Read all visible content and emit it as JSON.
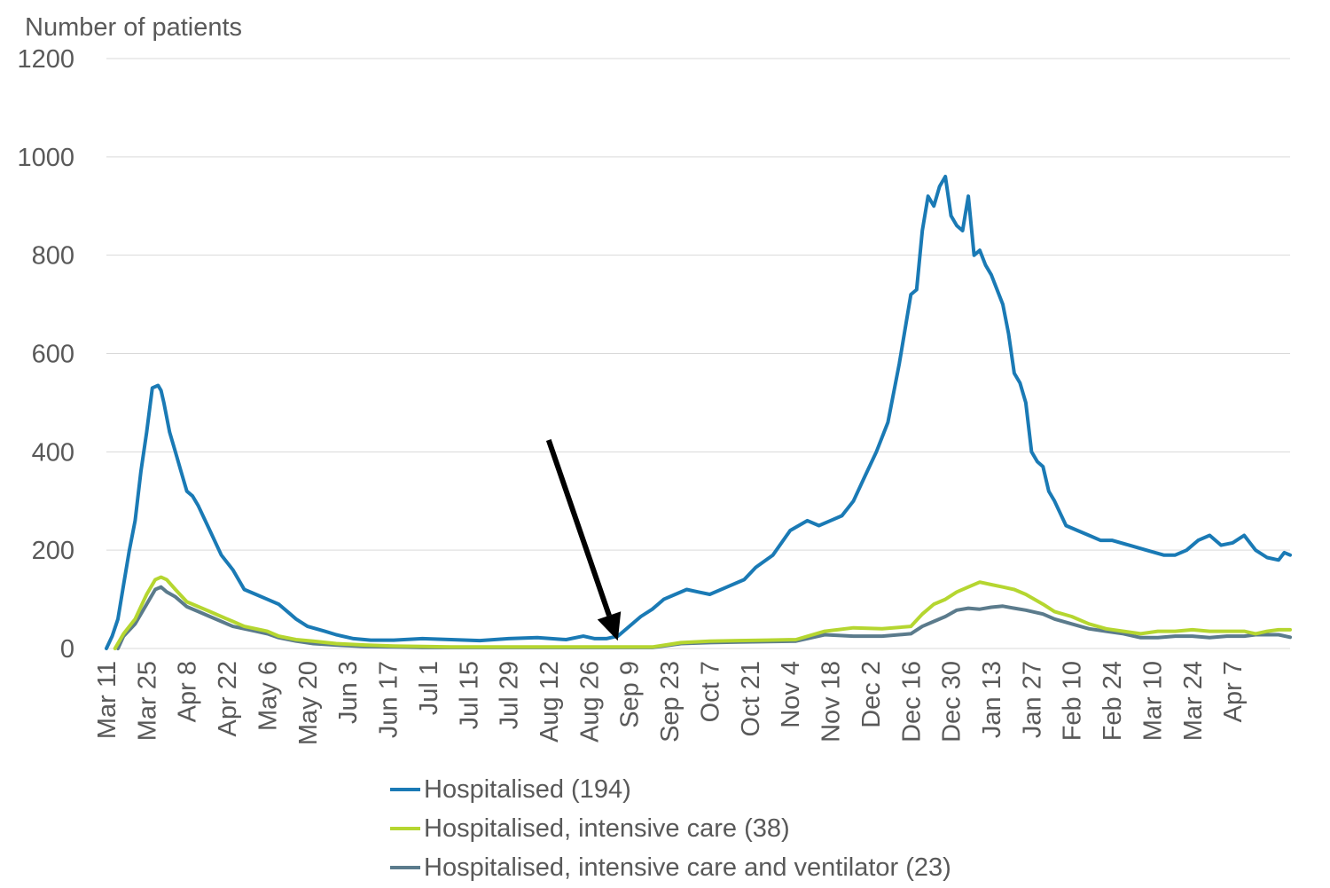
{
  "chart_data": {
    "type": "line",
    "ylabel": "Number of patients",
    "ylim": [
      0,
      1200
    ],
    "yticks": [
      0,
      200,
      400,
      600,
      800,
      1000,
      1200
    ],
    "grid": true,
    "legend_position": "bottom",
    "x_start_day": 0,
    "x_end_day": 412,
    "xtick_labels": [
      "Mar 11",
      "Mar 25",
      "Apr 8",
      "Apr 22",
      "May 6",
      "May 20",
      "Jun 3",
      "Jun 17",
      "Jul 1",
      "Jul 15",
      "Jul 29",
      "Aug 12",
      "Aug 26",
      "Sep 9",
      "Sep 23",
      "Oct 7",
      "Oct 21",
      "Nov 4",
      "Nov 18",
      "Dec 2",
      "Dec 16",
      "Dec 30",
      "Jan 13",
      "Jan 27",
      "Feb 10",
      "Feb 24",
      "Mar 10",
      "Mar 24",
      "Apr 7"
    ],
    "xtick_days": [
      0,
      14,
      28,
      42,
      56,
      70,
      84,
      98,
      112,
      126,
      140,
      154,
      168,
      182,
      196,
      210,
      224,
      238,
      252,
      266,
      280,
      294,
      308,
      322,
      336,
      350,
      364,
      378,
      392
    ],
    "annotation": {
      "type": "arrow",
      "target_day": 178,
      "target_value": 5
    },
    "series": [
      {
        "name": "Hospitalised (194)",
        "color": "#1a7ab5",
        "x": [
          0,
          2,
          4,
          6,
          8,
          10,
          12,
          14,
          16,
          18,
          19,
          20,
          22,
          24,
          26,
          28,
          30,
          32,
          36,
          40,
          44,
          48,
          52,
          56,
          60,
          64,
          66,
          70,
          76,
          80,
          86,
          92,
          100,
          110,
          120,
          130,
          140,
          150,
          160,
          166,
          170,
          174,
          178,
          182,
          186,
          190,
          194,
          198,
          202,
          206,
          210,
          216,
          222,
          226,
          232,
          238,
          244,
          248,
          252,
          256,
          260,
          264,
          268,
          272,
          276,
          280,
          282,
          284,
          286,
          288,
          290,
          292,
          294,
          296,
          298,
          300,
          302,
          304,
          306,
          308,
          310,
          312,
          314,
          316,
          318,
          320,
          322,
          324,
          326,
          328,
          330,
          334,
          338,
          342,
          346,
          350,
          356,
          362,
          368,
          372,
          376,
          380,
          384,
          388,
          392,
          396,
          400,
          404,
          408,
          410,
          412
        ],
        "values": [
          0,
          25,
          60,
          130,
          200,
          260,
          360,
          440,
          530,
          535,
          525,
          500,
          440,
          400,
          360,
          320,
          310,
          290,
          240,
          190,
          160,
          120,
          110,
          100,
          90,
          70,
          60,
          45,
          35,
          28,
          20,
          17,
          17,
          20,
          18,
          16,
          20,
          22,
          18,
          25,
          20,
          20,
          25,
          45,
          65,
          80,
          100,
          110,
          120,
          115,
          110,
          125,
          140,
          165,
          190,
          240,
          260,
          250,
          260,
          270,
          300,
          350,
          400,
          460,
          580,
          720,
          730,
          850,
          920,
          900,
          940,
          960,
          880,
          860,
          850,
          920,
          800,
          810,
          780,
          760,
          730,
          700,
          640,
          560,
          540,
          500,
          400,
          380,
          370,
          320,
          300,
          250,
          240,
          230,
          220,
          220,
          210,
          200,
          190,
          190,
          200,
          220,
          230,
          210,
          215,
          230,
          200,
          185,
          180,
          195,
          190
        ]
      },
      {
        "name": "Hospitalised, intensive care (38)",
        "color": "#b5d630",
        "x": [
          3,
          6,
          10,
          14,
          17,
          19,
          21,
          24,
          28,
          32,
          36,
          40,
          44,
          48,
          52,
          56,
          60,
          66,
          72,
          80,
          90,
          100,
          110,
          120,
          130,
          140,
          150,
          160,
          170,
          180,
          190,
          200,
          210,
          220,
          230,
          240,
          250,
          260,
          270,
          280,
          284,
          288,
          292,
          296,
          300,
          304,
          308,
          312,
          316,
          320,
          326,
          330,
          336,
          342,
          348,
          354,
          360,
          366,
          372,
          378,
          384,
          390,
          396,
          400,
          404,
          408,
          412
        ],
        "values": [
          0,
          30,
          60,
          110,
          140,
          145,
          140,
          120,
          95,
          85,
          75,
          65,
          55,
          45,
          40,
          35,
          25,
          18,
          15,
          10,
          7,
          5,
          4,
          3,
          3,
          3,
          3,
          3,
          3,
          3,
          3,
          12,
          15,
          16,
          17,
          18,
          35,
          42,
          40,
          45,
          70,
          90,
          100,
          115,
          125,
          135,
          130,
          125,
          120,
          110,
          90,
          75,
          65,
          50,
          40,
          35,
          30,
          35,
          35,
          38,
          35,
          35,
          35,
          30,
          35,
          38,
          38
        ]
      },
      {
        "name": "Hospitalised, intensive care and ventilator (23)",
        "color": "#5b7b8c",
        "x": [
          4,
          6,
          10,
          14,
          17,
          19,
          21,
          24,
          28,
          32,
          36,
          40,
          44,
          48,
          52,
          56,
          60,
          66,
          72,
          80,
          90,
          100,
          110,
          120,
          130,
          140,
          150,
          160,
          170,
          180,
          190,
          200,
          210,
          220,
          230,
          240,
          250,
          260,
          270,
          280,
          284,
          288,
          292,
          296,
          300,
          304,
          308,
          312,
          316,
          320,
          326,
          330,
          336,
          342,
          348,
          354,
          360,
          366,
          372,
          378,
          384,
          390,
          396,
          400,
          404,
          408,
          412
        ],
        "values": [
          0,
          25,
          50,
          90,
          120,
          125,
          115,
          105,
          85,
          75,
          65,
          55,
          45,
          40,
          35,
          30,
          22,
          15,
          10,
          7,
          4,
          3,
          2,
          2,
          2,
          2,
          2,
          2,
          2,
          2,
          2,
          10,
          12,
          13,
          14,
          15,
          28,
          25,
          25,
          30,
          45,
          55,
          65,
          78,
          82,
          80,
          84,
          86,
          82,
          78,
          70,
          60,
          50,
          40,
          35,
          30,
          22,
          22,
          25,
          25,
          22,
          25,
          25,
          28,
          28,
          28,
          23
        ]
      }
    ]
  }
}
